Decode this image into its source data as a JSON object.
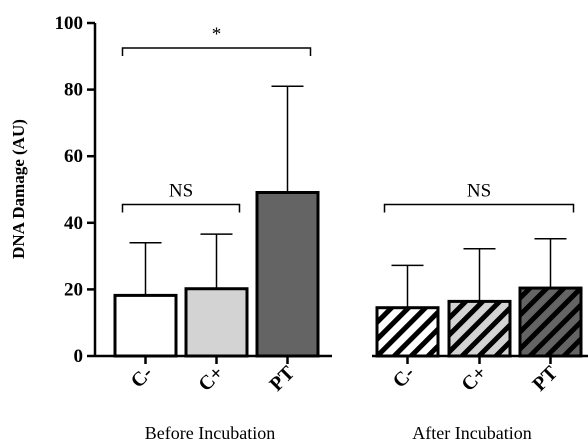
{
  "chart_data": {
    "type": "bar",
    "ylabel": "DNA Damage (AU)",
    "ylim": [
      0,
      100
    ],
    "yticks": [
      "0",
      "20",
      "40",
      "60",
      "80",
      "100"
    ],
    "groups": [
      {
        "label": "Before Incubation",
        "bars": [
          {
            "category": "C-",
            "value": 18.2,
            "error": 15.8,
            "fill": "#ffffff",
            "pattern": "none"
          },
          {
            "category": "C+",
            "value": 20.2,
            "error": 16.4,
            "fill": "#d3d3d3",
            "pattern": "none"
          },
          {
            "category": "PT",
            "value": 49.1,
            "error": 31.9,
            "fill": "#646464",
            "pattern": "none"
          }
        ]
      },
      {
        "label": "After Incubation",
        "bars": [
          {
            "category": "C-",
            "value": 14.5,
            "error": 12.7,
            "fill": "#ffffff",
            "pattern": "hatch"
          },
          {
            "category": "C+",
            "value": 16.4,
            "error": 15.8,
            "fill": "#d3d3d3",
            "pattern": "hatch"
          },
          {
            "category": "PT",
            "value": 20.4,
            "error": 14.8,
            "fill": "#646464",
            "pattern": "hatch"
          }
        ]
      }
    ],
    "annotations": [
      {
        "label": "NS",
        "group": 0,
        "from_bar": 0,
        "to_bar": 1,
        "y": 45.5
      },
      {
        "label": "*",
        "group": 0,
        "from_bar": 0,
        "to_bar": 2,
        "y": 92.5
      },
      {
        "label": "NS",
        "group": 1,
        "from_bar": 0,
        "to_bar": 2,
        "y": 45.5
      }
    ]
  }
}
